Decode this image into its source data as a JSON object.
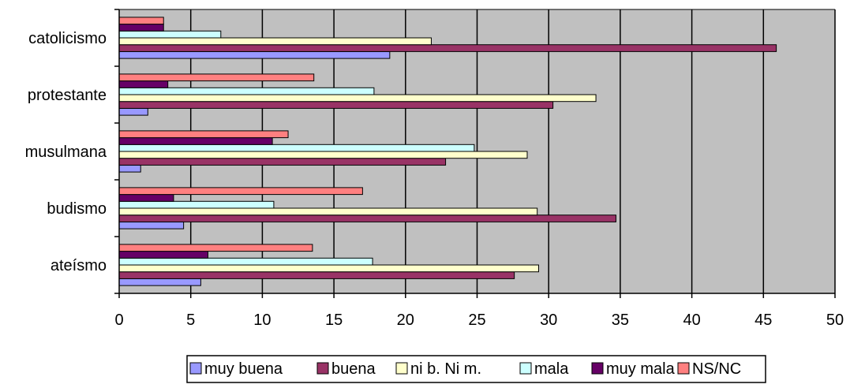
{
  "chart_data": {
    "type": "bar",
    "orientation": "horizontal",
    "title": "",
    "xlabel": "",
    "ylabel": "",
    "xlim": [
      0,
      50
    ],
    "xticks": [
      "0",
      "5",
      "10",
      "15",
      "20",
      "25",
      "30",
      "35",
      "40",
      "45",
      "50"
    ],
    "grid": true,
    "legend_position": "bottom",
    "plot_background": "#c0c0c0",
    "categories": [
      "catolicismo",
      "protestante",
      "musulmana",
      "budismo",
      "ateísmo"
    ],
    "series": [
      {
        "name": "muy buena",
        "color": "#9999ff",
        "values": [
          18.9,
          2.0,
          1.5,
          4.5,
          5.7
        ]
      },
      {
        "name": "buena",
        "color": "#993366",
        "values": [
          45.9,
          30.3,
          22.8,
          34.7,
          27.6
        ]
      },
      {
        "name": "ni b. Ni m.",
        "color": "#ffffcc",
        "values": [
          21.8,
          33.3,
          28.5,
          29.2,
          29.3
        ]
      },
      {
        "name": "mala",
        "color": "#ccffff",
        "values": [
          7.1,
          17.8,
          24.8,
          10.8,
          17.7
        ]
      },
      {
        "name": "muy mala",
        "color": "#660066",
        "values": [
          3.1,
          3.4,
          10.7,
          3.8,
          6.2
        ]
      },
      {
        "name": "NS/NC",
        "color": "#ff8080",
        "values": [
          3.1,
          13.6,
          11.8,
          17.0,
          13.5
        ]
      }
    ]
  }
}
